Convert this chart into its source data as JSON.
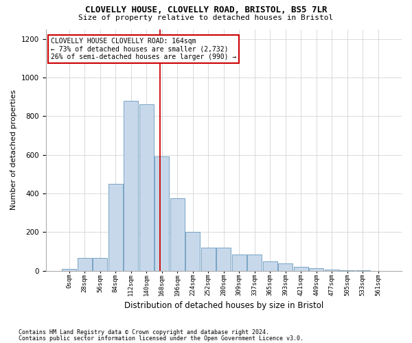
{
  "title1": "CLOVELLY HOUSE, CLOVELLY ROAD, BRISTOL, BS5 7LR",
  "title2": "Size of property relative to detached houses in Bristol",
  "xlabel": "Distribution of detached houses by size in Bristol",
  "ylabel": "Number of detached properties",
  "bar_values": [
    10,
    65,
    65,
    450,
    880,
    860,
    590,
    375,
    200,
    120,
    120,
    85,
    85,
    50,
    38,
    20,
    15,
    5,
    2,
    1,
    0
  ],
  "bin_labels": [
    "0sqm",
    "28sqm",
    "56sqm",
    "84sqm",
    "112sqm",
    "140sqm",
    "168sqm",
    "196sqm",
    "224sqm",
    "252sqm",
    "280sqm",
    "309sqm",
    "337sqm",
    "365sqm",
    "393sqm",
    "421sqm",
    "449sqm",
    "477sqm",
    "505sqm",
    "533sqm",
    "561sqm"
  ],
  "bar_color": "#c8d8eb",
  "bar_edge_color": "#6699bb",
  "vline_color": "#cc0000",
  "annotation_box_text": "CLOVELLY HOUSE CLOVELLY ROAD: 164sqm\n← 73% of detached houses are smaller (2,732)\n26% of semi-detached houses are larger (990) →",
  "ylim": [
    0,
    1250
  ],
  "yticks": [
    0,
    200,
    400,
    600,
    800,
    1000,
    1200
  ],
  "footer1": "Contains HM Land Registry data © Crown copyright and database right 2024.",
  "footer2": "Contains public sector information licensed under the Open Government Licence v3.0.",
  "bg_color": "#ffffff"
}
